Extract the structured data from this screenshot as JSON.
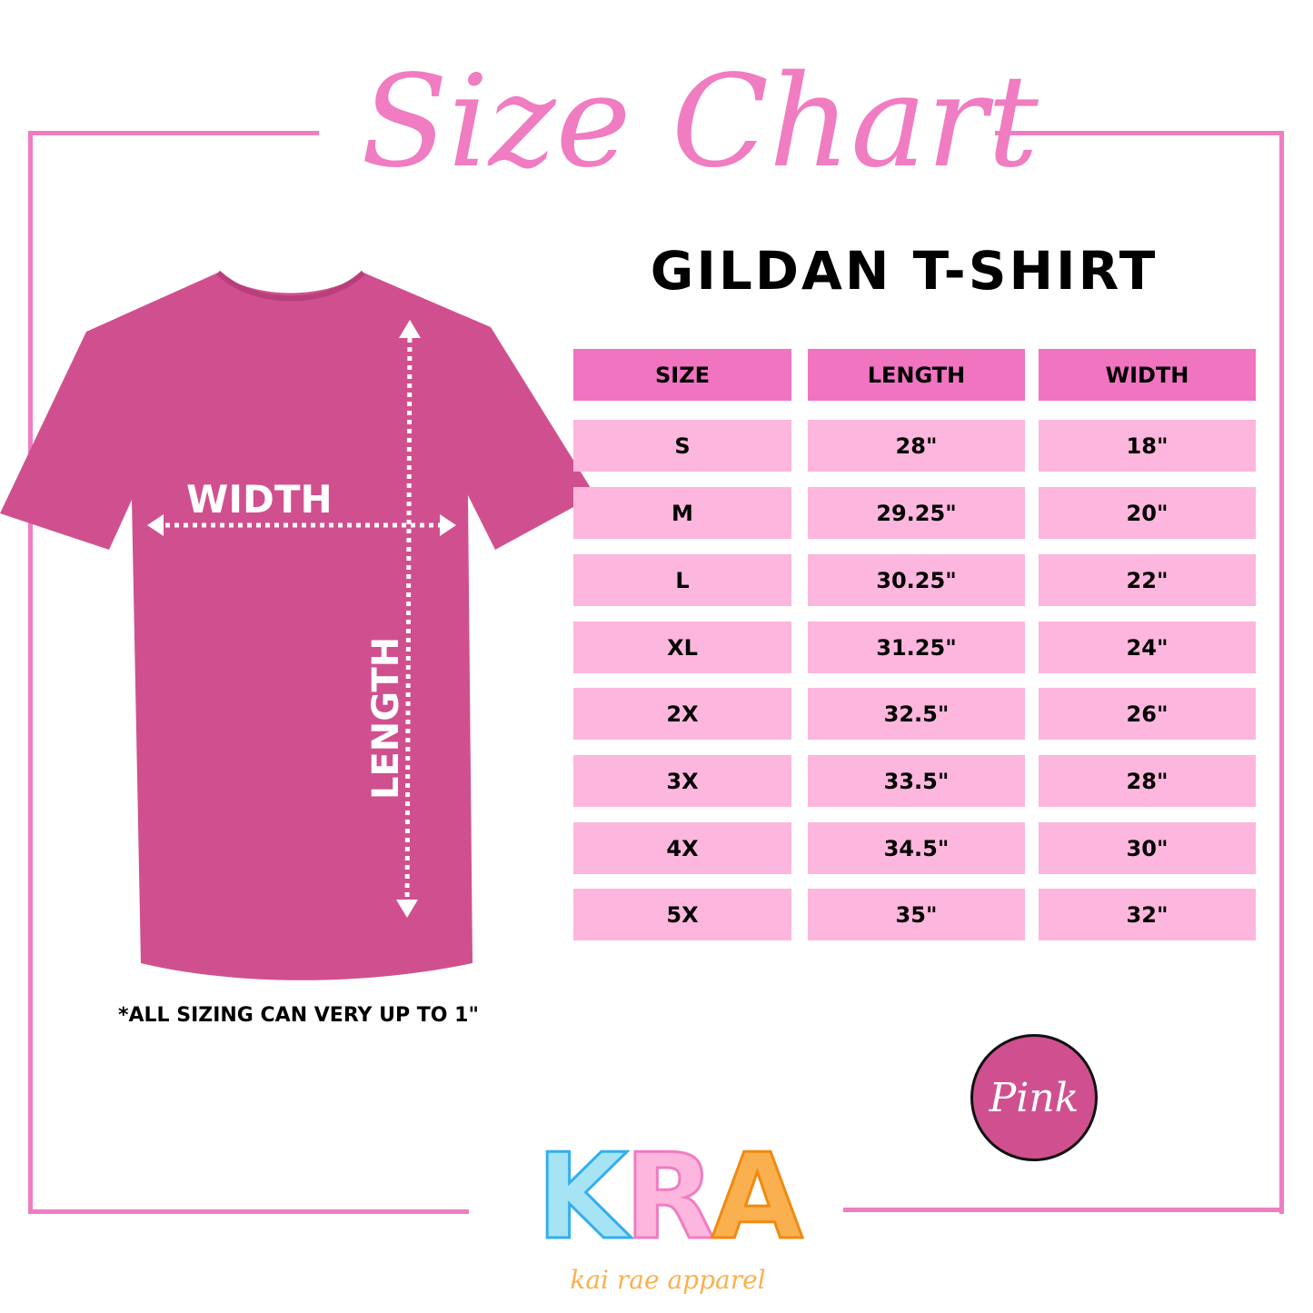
{
  "title": "Size Chart",
  "subtitle": "GILDAN T-SHIRT",
  "shirt": {
    "width_label": "WIDTH",
    "length_label": "LENGTH",
    "color": "#d0508f"
  },
  "table": {
    "headers": [
      "SIZE",
      "LENGTH",
      "WIDTH"
    ],
    "rows": [
      [
        "S",
        "28\"",
        "18\""
      ],
      [
        "M",
        "29.25\"",
        "20\""
      ],
      [
        "L",
        "30.25\"",
        "22\""
      ],
      [
        "XL",
        "31.25\"",
        "24\""
      ],
      [
        "2X",
        "32.5\"",
        "26\""
      ],
      [
        "3X",
        "33.5\"",
        "28\""
      ],
      [
        "4X",
        "34.5\"",
        "30\""
      ],
      [
        "5X",
        "35\"",
        "32\""
      ]
    ]
  },
  "note": "*ALL SIZING CAN VERY UP TO 1\"",
  "color_badge": "Pink",
  "logo": {
    "letters": [
      "K",
      "R",
      "A"
    ],
    "tagline": "kai rae apparel"
  },
  "colors": {
    "accent": "#f07cc2",
    "header": "#f074c0",
    "row": "#fdb6dd",
    "shirt": "#d0508f"
  }
}
